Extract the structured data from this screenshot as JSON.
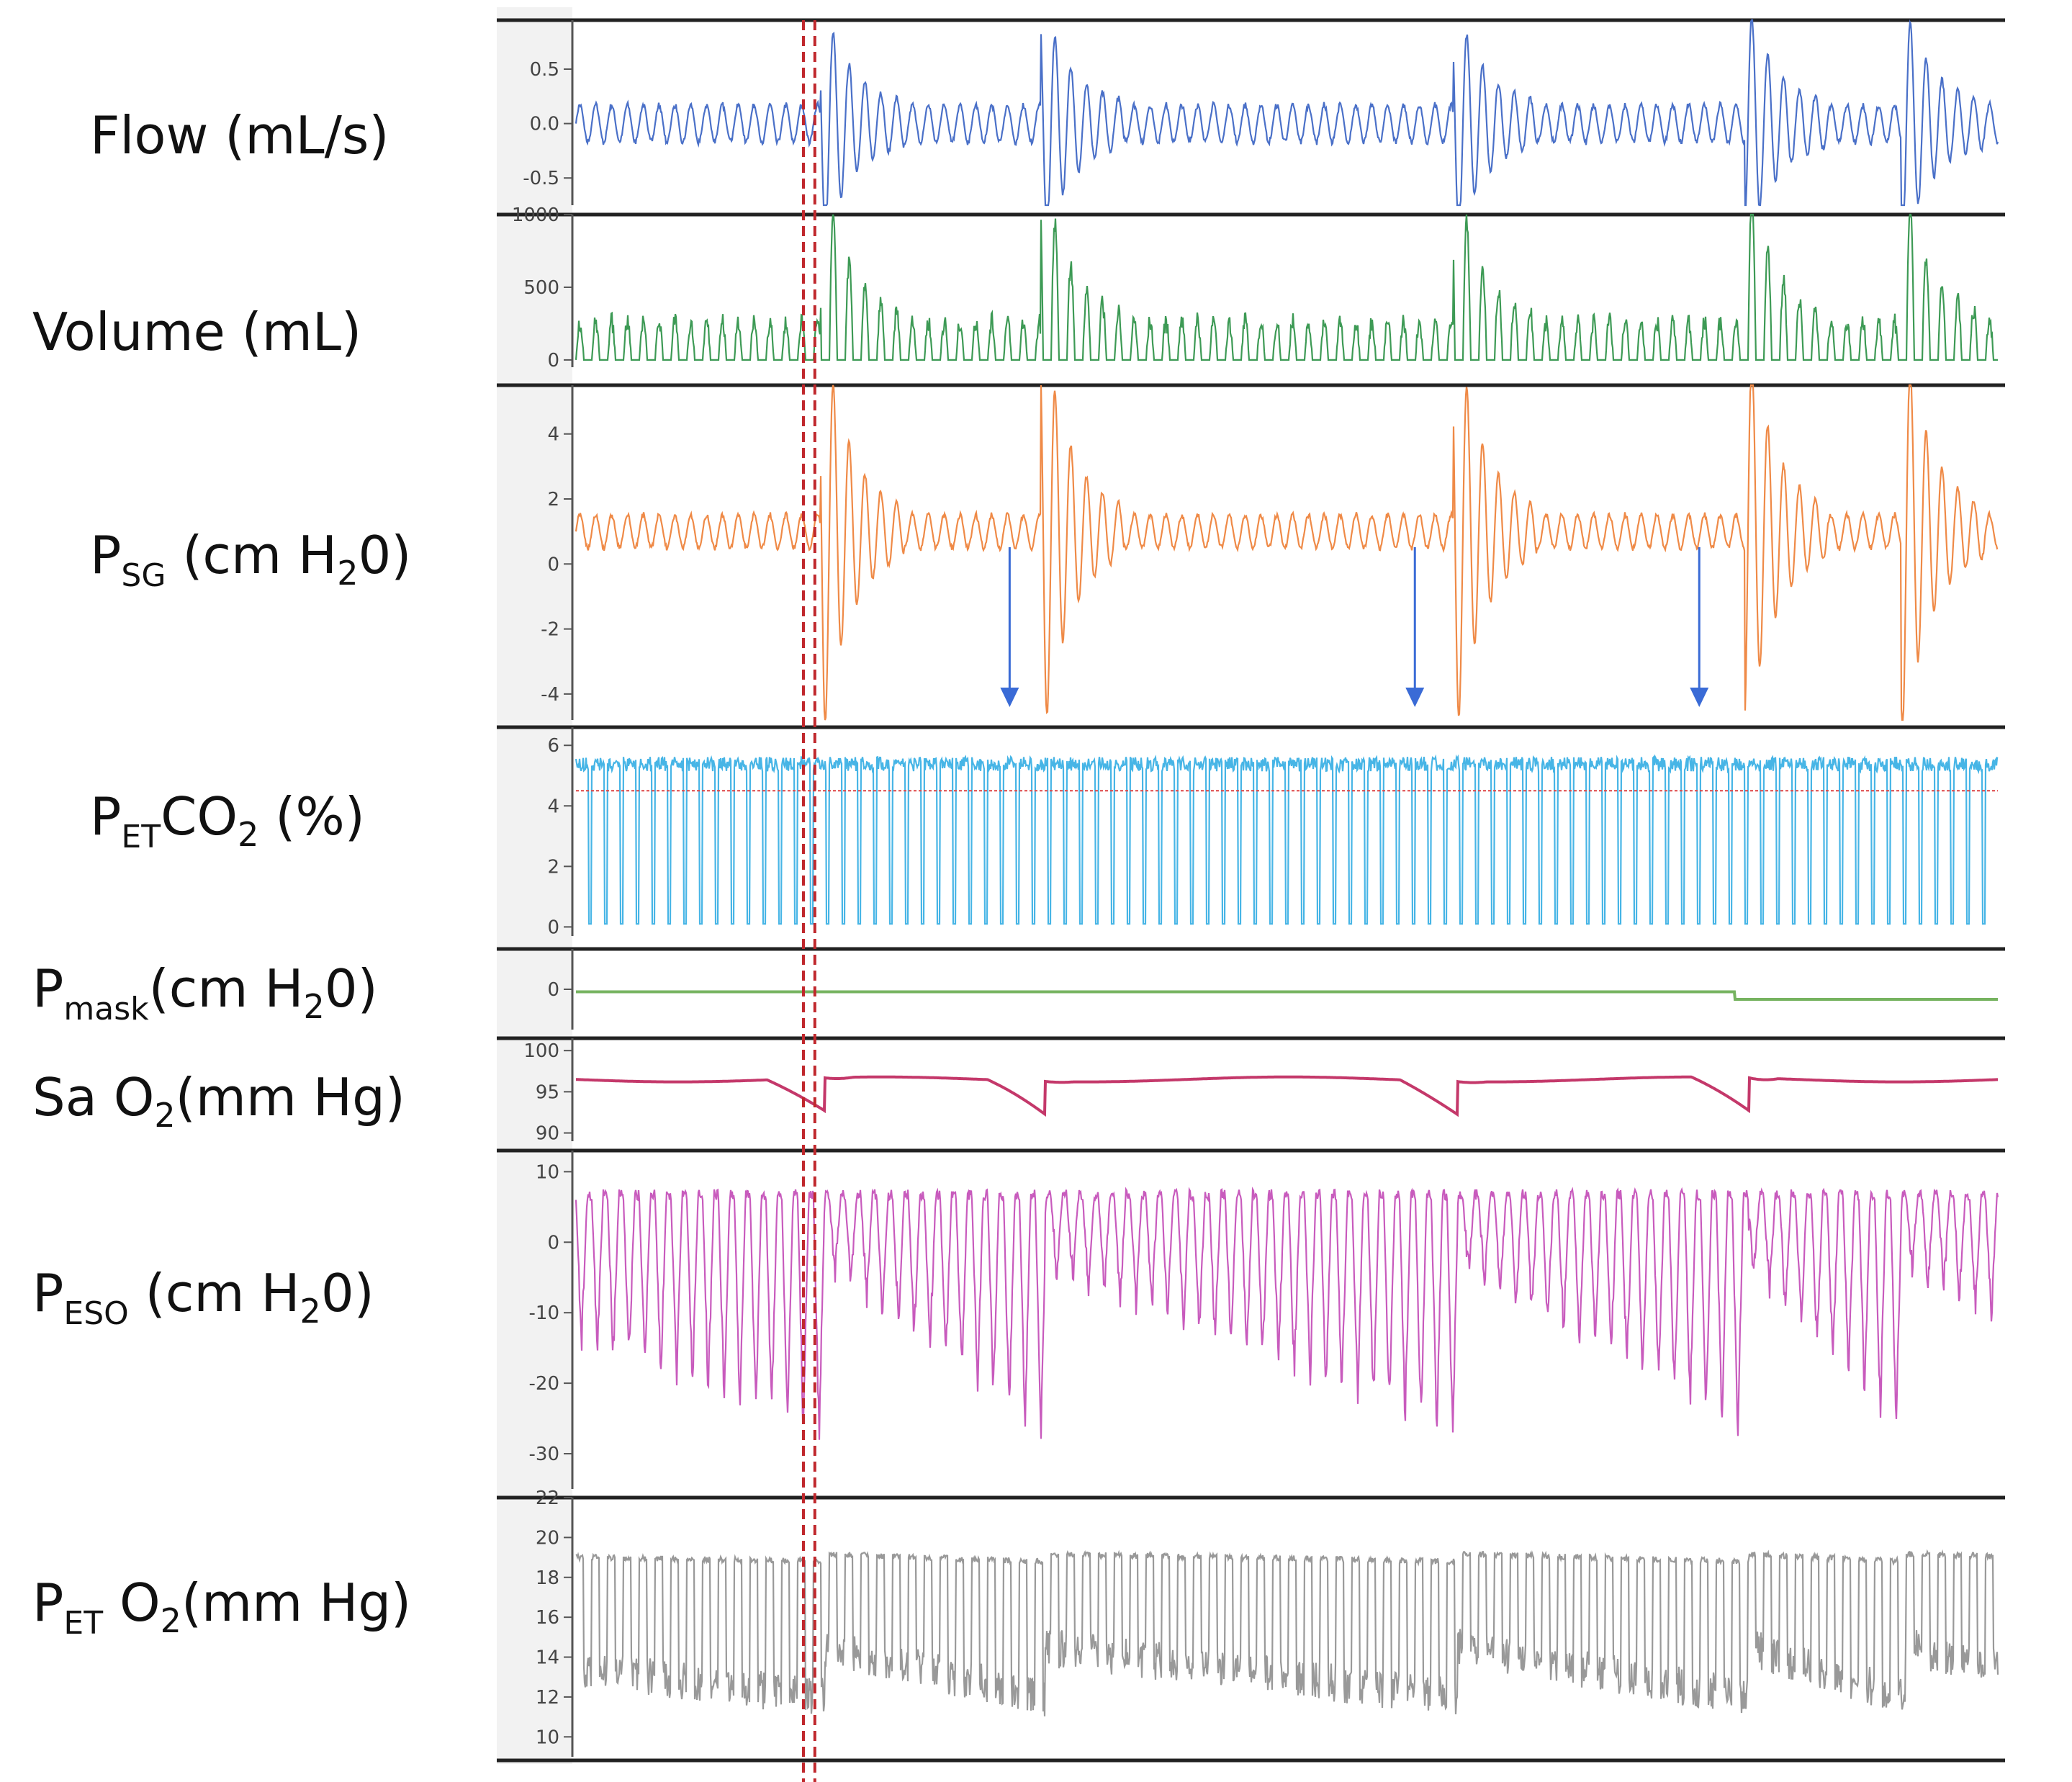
{
  "chart_data": {
    "type": "line",
    "panels": [
      {
        "key": "flow",
        "label": {
          "main": "Flow (mL/s)"
        },
        "color": "#4a70c8",
        "ylim": [
          -0.75,
          0.95
        ],
        "ticks": [
          {
            "v": 0.5,
            "t": "0.5"
          },
          {
            "v": 0.0,
            "t": "0.0"
          },
          {
            "v": -0.5,
            "t": "-0.5"
          }
        ],
        "baseline": 0.0,
        "amp": 0.2,
        "burst_amp": 0.9,
        "mode": "sym"
      },
      {
        "key": "volume",
        "label": {
          "main": "Volume (mL)"
        },
        "color": "#3d9a55",
        "ylim": [
          -50,
          1000
        ],
        "ticks": [
          {
            "v": 1000,
            "t": "1000"
          },
          {
            "v": 500,
            "t": "500"
          },
          {
            "v": 0,
            "t": "0"
          }
        ],
        "baseline": 0,
        "amp": 330,
        "burst_amp": 980,
        "mode": "up"
      },
      {
        "key": "psg",
        "label": {
          "pre": "P",
          "sub": "SG",
          "post": " (cm H",
          "sub2": "2",
          "post2": "0)"
        },
        "color": "#ef8a47",
        "ylim": [
          -4.8,
          5.5
        ],
        "ticks": [
          {
            "v": 4,
            "t": "4"
          },
          {
            "v": 2,
            "t": "2"
          },
          {
            "v": 0,
            "t": "0"
          },
          {
            "v": -2,
            "t": "-2"
          },
          {
            "v": -4,
            "t": "-4"
          }
        ],
        "baseline": 1.0,
        "amp": 0.6,
        "burst_amp": 5.5,
        "mode": "sym"
      },
      {
        "key": "petco2",
        "label": {
          "pre": "P",
          "sub": "ET",
          "post": "CO",
          "sub2": "2",
          "post2": " (%)"
        },
        "color": "#47b5e6",
        "ylim": [
          -0.3,
          6.6
        ],
        "ticks": [
          {
            "v": 6,
            "t": "6"
          },
          {
            "v": 4,
            "t": "4"
          },
          {
            "v": 2,
            "t": "2"
          },
          {
            "v": 0,
            "t": "0"
          }
        ],
        "baseline": 0.1,
        "amp": 6.0,
        "burst_amp": 6.0,
        "mode": "capno",
        "ref_line": 4.5
      },
      {
        "key": "pmask",
        "label": {
          "pre": "P",
          "sub": "mask",
          "post": "(cm H",
          "sub2": "2",
          "post2": "0)"
        },
        "color": "#76b360",
        "ylim": [
          -1.6,
          1.6
        ],
        "ticks": [
          {
            "v": 0,
            "t": "0"
          }
        ],
        "baseline": -0.1,
        "amp": 0,
        "burst_amp": 0,
        "mode": "flat"
      },
      {
        "key": "sao2",
        "label": {
          "pre": "Sa O",
          "sub2": "2",
          "post2": "(mm Hg)"
        },
        "color": "#c4386a",
        "ylim": [
          89,
          101.5
        ],
        "ticks": [
          {
            "v": 100,
            "t": "100"
          },
          {
            "v": 95,
            "t": "95"
          },
          {
            "v": 90,
            "t": "90"
          }
        ],
        "baseline": 96.5,
        "amp": 0,
        "burst_amp": 0,
        "mode": "sao2"
      },
      {
        "key": "peso",
        "label": {
          "pre": "P",
          "sub": "ESO",
          "post": " (cm H",
          "sub2": "2",
          "post2": "0)"
        },
        "color": "#c85bbd",
        "ylim": [
          -35,
          13
        ],
        "ticks": [
          {
            "v": 10,
            "t": "10"
          },
          {
            "v": 0,
            "t": "0"
          },
          {
            "v": -10,
            "t": "-10"
          },
          {
            "v": -20,
            "t": "-20"
          },
          {
            "v": -30,
            "t": "-30"
          }
        ],
        "baseline": 6,
        "amp": 12,
        "burst_amp": 36,
        "mode": "eso"
      },
      {
        "key": "peto2",
        "label": {
          "pre": "P",
          "sub": "ET",
          "post": " O",
          "sub2": "2",
          "post2": "(mm Hg)"
        },
        "color": "#999999",
        "ylim": [
          9,
          22
        ],
        "ticks": [
          {
            "v": 22,
            "t": "22"
          },
          {
            "v": 20,
            "t": "20"
          },
          {
            "v": 18,
            "t": "18"
          },
          {
            "v": 16,
            "t": "16"
          },
          {
            "v": 14,
            "t": "14"
          },
          {
            "v": 12,
            "t": "12"
          },
          {
            "v": 10,
            "t": "10"
          }
        ],
        "baseline": 20,
        "amp": 6.5,
        "burst_amp": 9,
        "mode": "eto2"
      }
    ],
    "events_frac": [
      0.175,
      0.33,
      0.62,
      0.825,
      0.935
    ],
    "arrows_frac": [
      0.305,
      0.59,
      0.79
    ],
    "markers_frac": [
      0.16,
      0.168
    ],
    "x_marker_frac": 0.815
  }
}
